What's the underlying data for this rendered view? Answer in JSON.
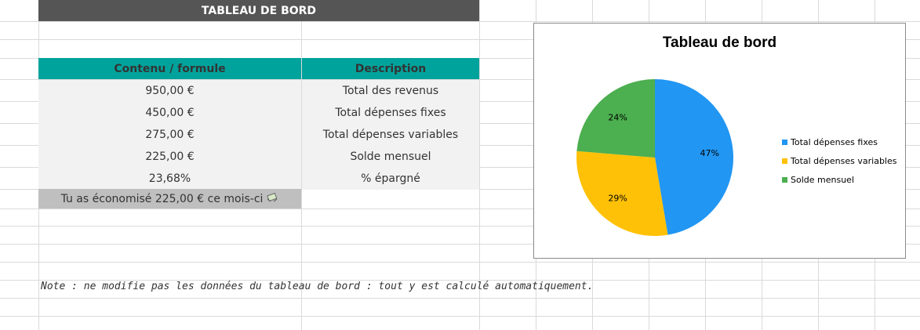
{
  "dashboard": {
    "header": "TABLEAU DE BORD",
    "columns": {
      "content": "Contenu / formule",
      "description": "Description"
    },
    "rows": [
      {
        "value": "950,00 €",
        "description": "Total des revenus"
      },
      {
        "value": "450,00 €",
        "description": "Total dépenses fixes"
      },
      {
        "value": "275,00 €",
        "description": "Total dépenses variables"
      },
      {
        "value": "225,00 €",
        "description": "Solde mensuel"
      },
      {
        "value": "23,68%",
        "description": "% épargné"
      }
    ],
    "savings_message": "Tu as économisé 225,00 € ce mois-ci",
    "savings_icon": "money-wings-emoji"
  },
  "note": "Note : ne modifie pas les données du tableau de bord : tout y est calculé automatiquement.",
  "chart_data": {
    "type": "pie",
    "title": "Tableau de bord",
    "categories": [
      "Total dépenses fixes",
      "Total dépenses variables",
      "Solde mensuel"
    ],
    "values": [
      450,
      275,
      225
    ],
    "labels": [
      "47%",
      "29%",
      "24%"
    ],
    "colors": [
      "#2196F3",
      "#FFC107",
      "#4CAF50"
    ],
    "legend_position": "right"
  }
}
